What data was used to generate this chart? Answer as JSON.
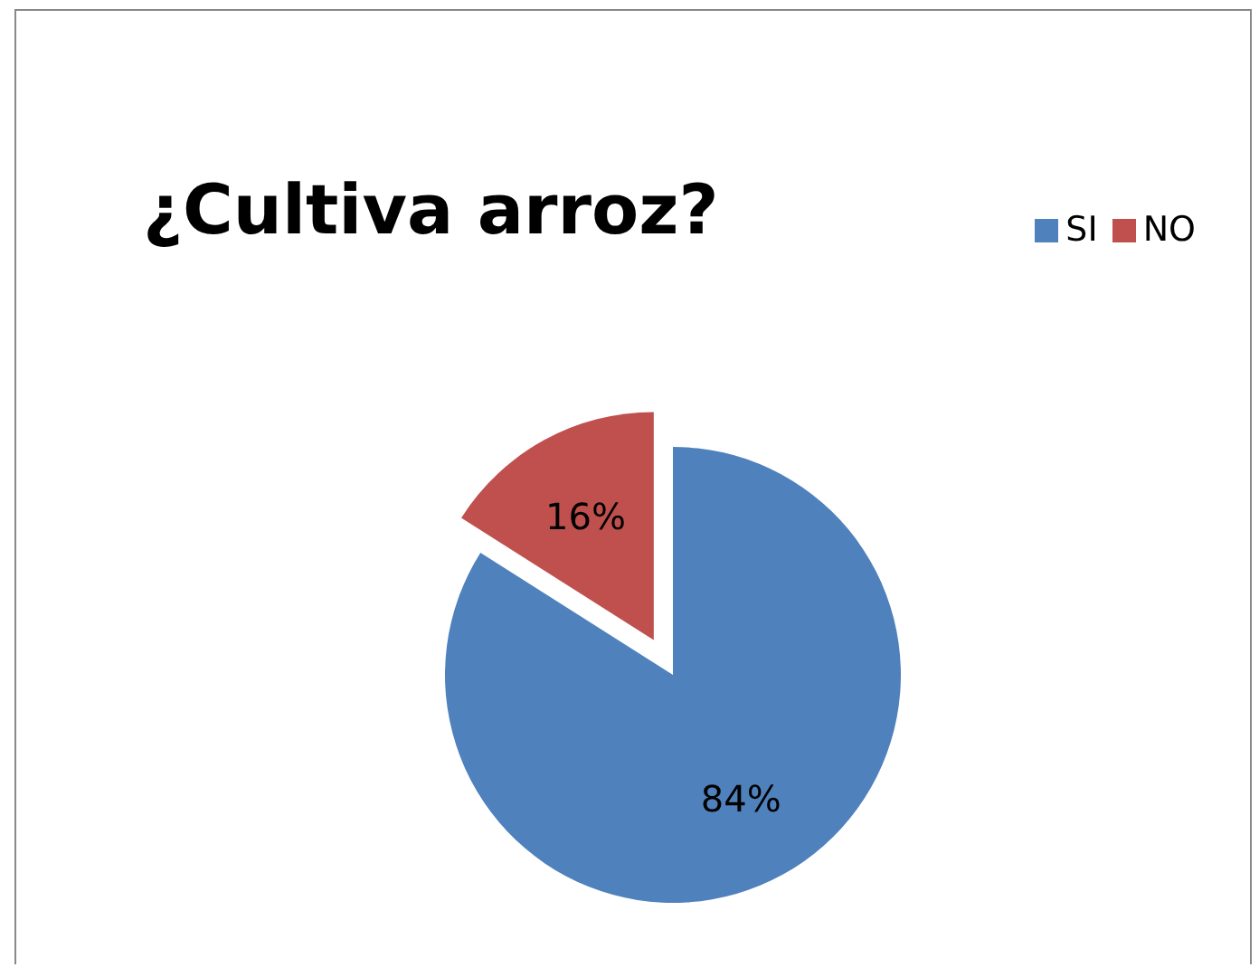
{
  "chart_data": {
    "type": "pie",
    "title": "¿Cultiva arroz?",
    "categories": [
      "SI",
      "NO"
    ],
    "values": [
      84,
      16
    ],
    "colors": [
      "#4f81bd",
      "#c0504d"
    ],
    "value_labels": [
      "84%",
      "16%"
    ],
    "legend": "top right"
  }
}
